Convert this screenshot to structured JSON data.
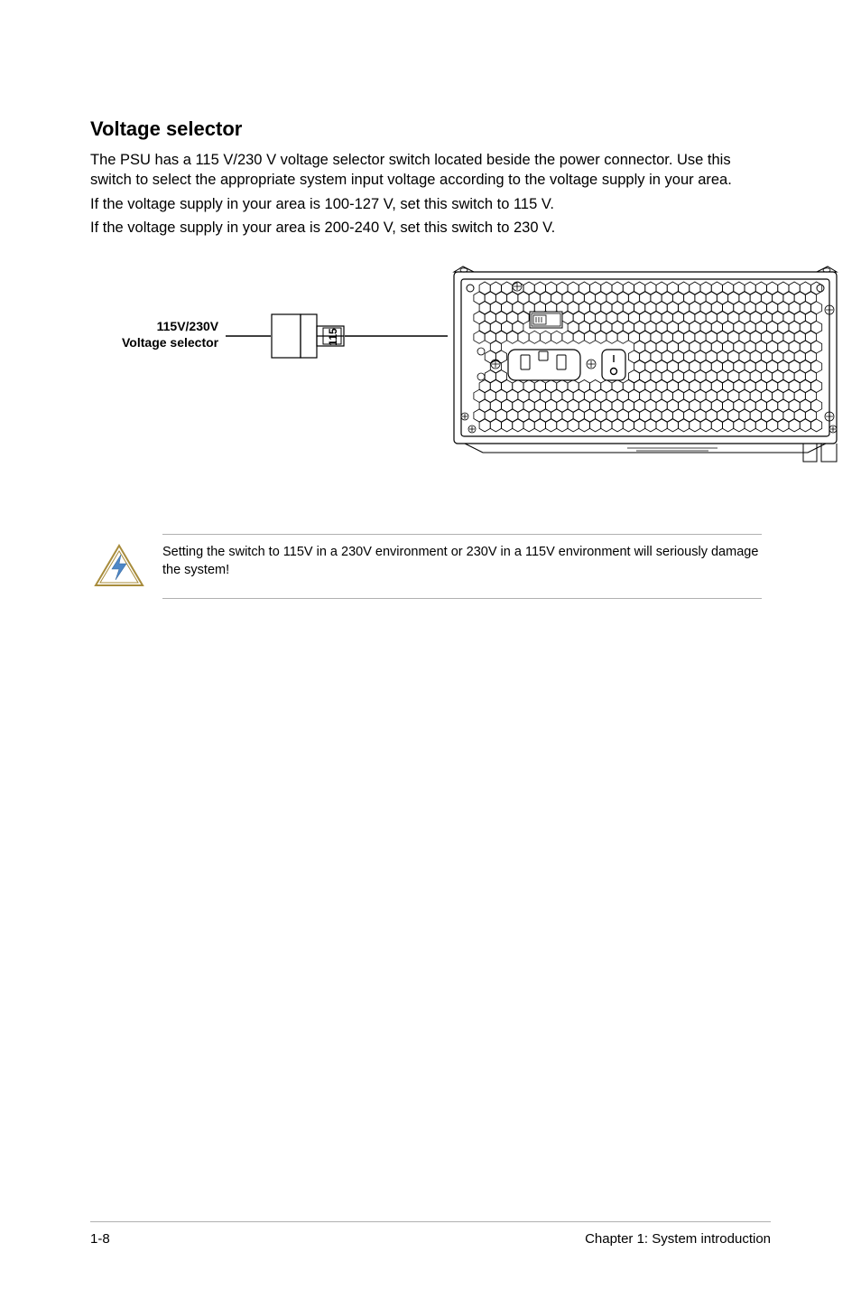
{
  "heading": "Voltage selector",
  "paragraph1": "The PSU has a 115 V/230 V voltage selector switch located beside the power connector. Use this switch to select the appropriate system input voltage according to the voltage supply in your area.",
  "paragraph2": "If the voltage supply in your area is 100-127 V, set this switch to 115 V.",
  "paragraph3": "If the voltage supply in your area is 200-240 V, set this switch to 230 V.",
  "figure": {
    "label_line1": "115V/230V",
    "label_line2": "Voltage selector",
    "switch_text": "115",
    "label_fontsize": 14,
    "label_fontweight": "bold",
    "line_color": "#000000",
    "stroke_width": 1.2
  },
  "note": {
    "text": "Setting the switch to 115V in a 230V environment or 230V in a 115V environment will seriously damage the system!",
    "icon_border": "#a88c3c",
    "icon_fill": "#4d87c7"
  },
  "footer": {
    "left": "1-8",
    "right": "Chapter 1: System introduction"
  },
  "colors": {
    "text": "#000000",
    "rule": "#b0b0b0",
    "background": "#ffffff"
  }
}
